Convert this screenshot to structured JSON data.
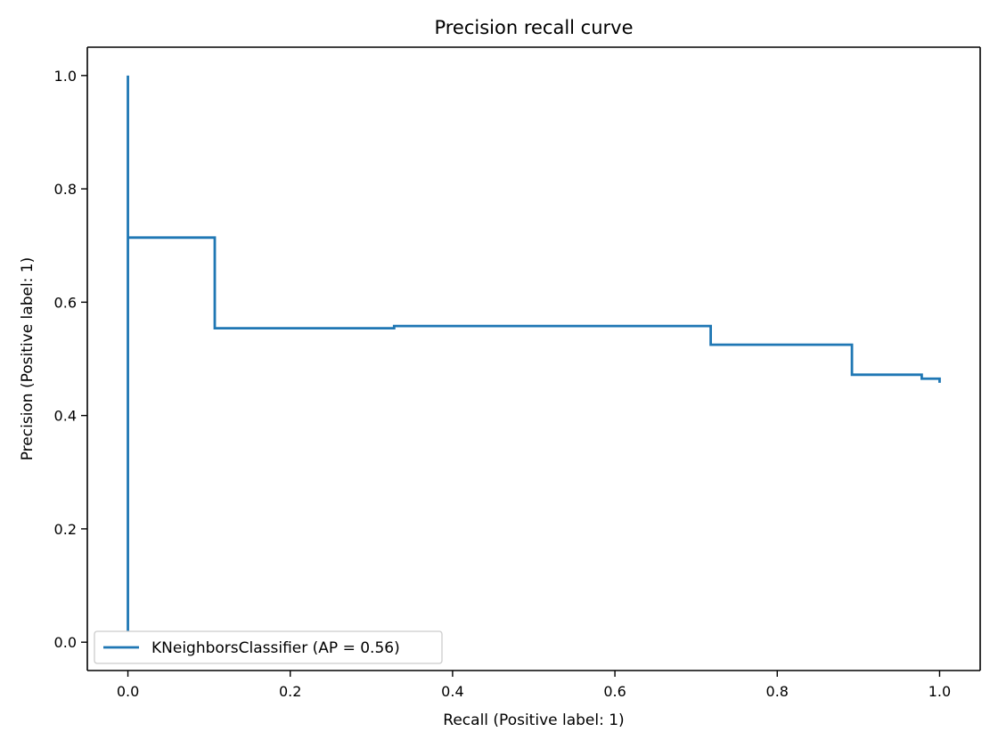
{
  "chart_data": {
    "type": "line",
    "title": "Precision recall curve",
    "xlabel": "Recall (Positive label: 1)",
    "ylabel": "Precision (Positive label: 1)",
    "xlim": [
      -0.05,
      1.05
    ],
    "ylim": [
      -0.05,
      1.05
    ],
    "x_ticks": [
      0.0,
      0.2,
      0.4,
      0.6,
      0.8,
      1.0
    ],
    "x_tick_labels": [
      "0.0",
      "0.2",
      "0.4",
      "0.6",
      "0.8",
      "1.0"
    ],
    "y_ticks": [
      0.0,
      0.2,
      0.4,
      0.6,
      0.8,
      1.0
    ],
    "y_tick_labels": [
      "0.0",
      "0.2",
      "0.4",
      "0.6",
      "0.8",
      "1.0"
    ],
    "grid": false,
    "legend_position": "lower-left",
    "series": [
      {
        "name": "KNeighborsClassifier (AP = 0.56)",
        "color": "#1f77b4",
        "points": [
          [
            0.0,
            0.0
          ],
          [
            0.0,
            1.0
          ],
          [
            0.0,
            0.714
          ],
          [
            0.107,
            0.714
          ],
          [
            0.107,
            0.554
          ],
          [
            0.328,
            0.554
          ],
          [
            0.328,
            0.558
          ],
          [
            0.718,
            0.558
          ],
          [
            0.718,
            0.525
          ],
          [
            0.892,
            0.525
          ],
          [
            0.892,
            0.472
          ],
          [
            0.978,
            0.472
          ],
          [
            0.978,
            0.465
          ],
          [
            1.0,
            0.465
          ],
          [
            1.0,
            0.46
          ]
        ]
      }
    ]
  }
}
